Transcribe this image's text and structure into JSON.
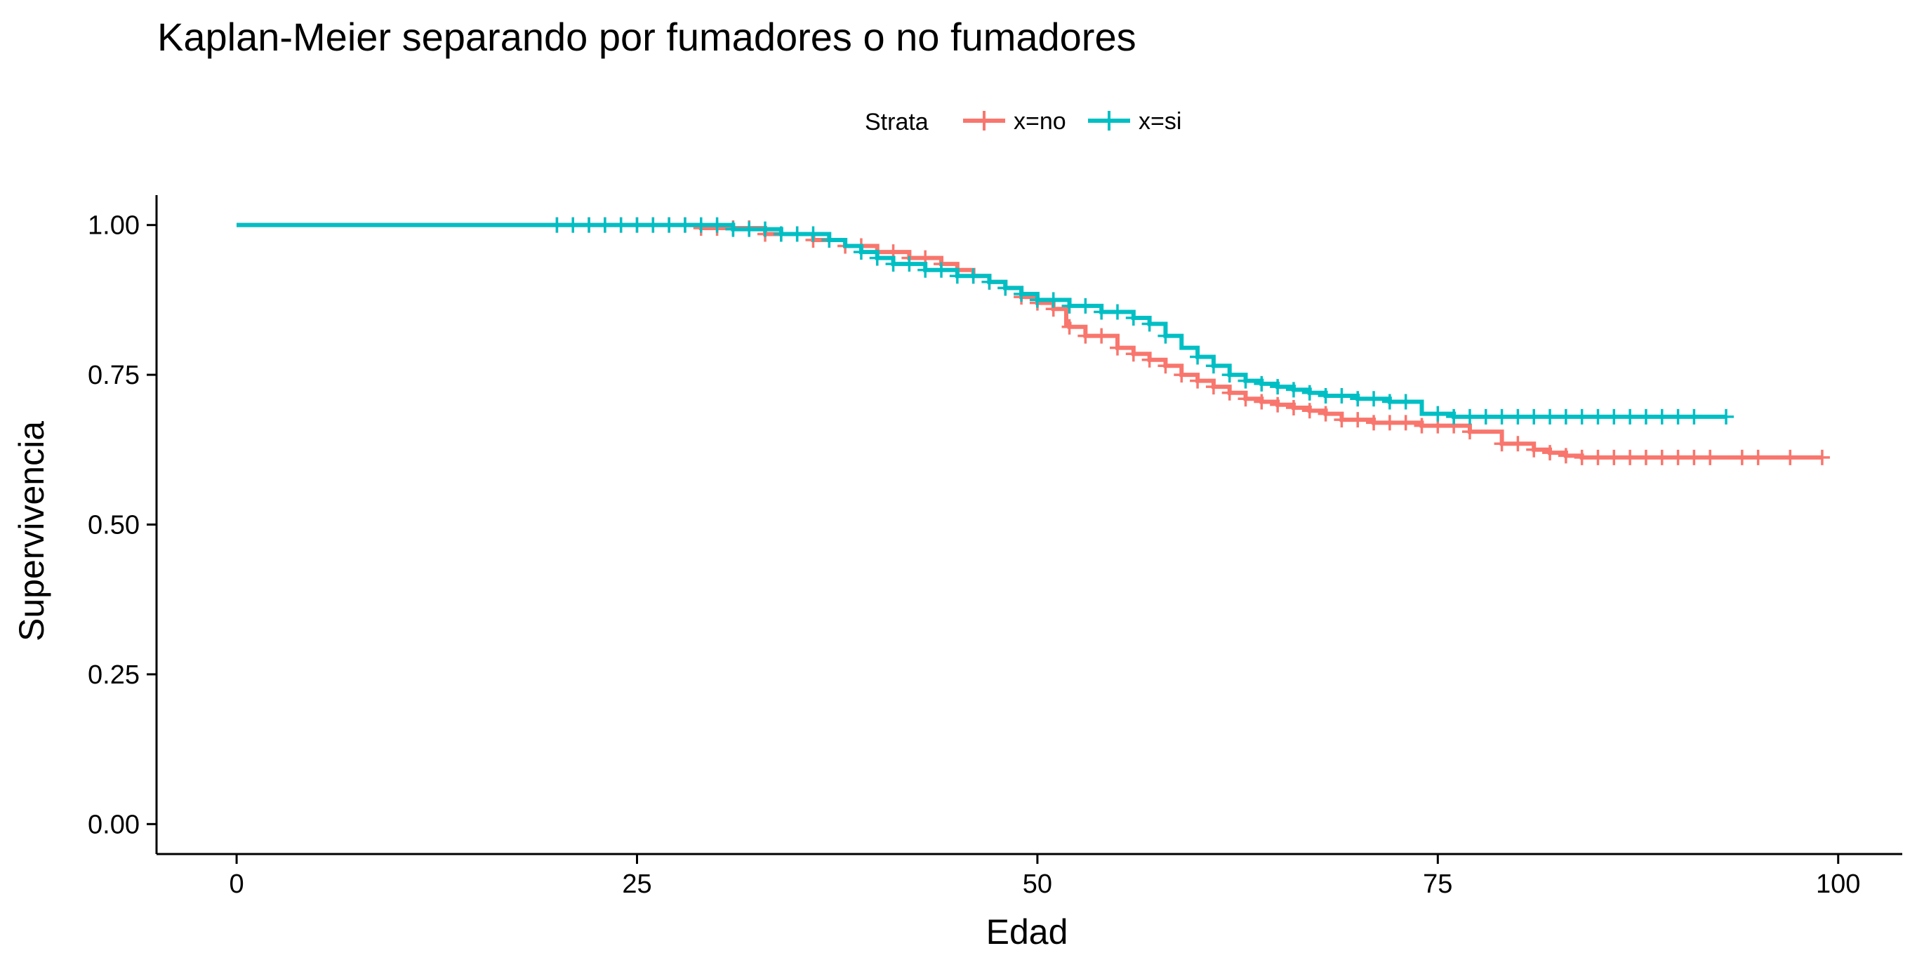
{
  "chart_data": {
    "type": "line",
    "subtype": "kaplan-meier-step",
    "title": "Kaplan-Meier separando por fumadores o no fumadores",
    "xlabel": "Edad",
    "ylabel": "Supervivencia",
    "xlim": [
      -5,
      104
    ],
    "ylim": [
      -0.05,
      1.05
    ],
    "xticks": [
      0,
      25,
      50,
      75,
      100
    ],
    "xtick_labels": [
      "0",
      "25",
      "50",
      "75",
      "100"
    ],
    "yticks": [
      0,
      0.25,
      0.5,
      0.75,
      1.0
    ],
    "ytick_labels": [
      "0.00",
      "0.25",
      "0.50",
      "0.75",
      "1.00"
    ],
    "grid": false,
    "legend": {
      "title": "Strata",
      "position": "top"
    },
    "series": [
      {
        "name": "x=no",
        "color": "#F8766D",
        "steps": [
          [
            0,
            1.0
          ],
          [
            29,
            0.995
          ],
          [
            33,
            0.985
          ],
          [
            36,
            0.975
          ],
          [
            38,
            0.965
          ],
          [
            40,
            0.955
          ],
          [
            42,
            0.945
          ],
          [
            44,
            0.935
          ],
          [
            45,
            0.925
          ],
          [
            46,
            0.915
          ],
          [
            47,
            0.905
          ],
          [
            48,
            0.895
          ],
          [
            49,
            0.88
          ],
          [
            50,
            0.87
          ],
          [
            51,
            0.86
          ],
          [
            51.8,
            0.835
          ],
          [
            52,
            0.83
          ],
          [
            53,
            0.815
          ],
          [
            55,
            0.795
          ],
          [
            56,
            0.785
          ],
          [
            57,
            0.775
          ],
          [
            58,
            0.765
          ],
          [
            59,
            0.75
          ],
          [
            60,
            0.74
          ],
          [
            61,
            0.73
          ],
          [
            62,
            0.72
          ],
          [
            63,
            0.71
          ],
          [
            64,
            0.705
          ],
          [
            65,
            0.7
          ],
          [
            66,
            0.695
          ],
          [
            67,
            0.69
          ],
          [
            68,
            0.685
          ],
          [
            69,
            0.675
          ],
          [
            71,
            0.67
          ],
          [
            74,
            0.665
          ],
          [
            77,
            0.655
          ],
          [
            79,
            0.635
          ],
          [
            81,
            0.625
          ],
          [
            82,
            0.62
          ],
          [
            83,
            0.615
          ],
          [
            84,
            0.612
          ],
          [
            99,
            0.612
          ]
        ],
        "censor": [
          20,
          21,
          22,
          23,
          24,
          25,
          26,
          27,
          28,
          29,
          30,
          31,
          32,
          33,
          34,
          35,
          36,
          37,
          38,
          39,
          40,
          41,
          42,
          43,
          44,
          45,
          46,
          47,
          48,
          49,
          50,
          51,
          52,
          53,
          54,
          55,
          56,
          57,
          58,
          59,
          60,
          61,
          62,
          63,
          64,
          65,
          66,
          67,
          68,
          69,
          70,
          71,
          72,
          73,
          74,
          75,
          76,
          77,
          79,
          80,
          81,
          82,
          83,
          84,
          85,
          86,
          87,
          88,
          89,
          90,
          91,
          92,
          94,
          95,
          97,
          99
        ]
      },
      {
        "name": "x=si",
        "color": "#00BFC4",
        "steps": [
          [
            0,
            1.0
          ],
          [
            31,
            0.993
          ],
          [
            34,
            0.985
          ],
          [
            37,
            0.975
          ],
          [
            38,
            0.965
          ],
          [
            39,
            0.955
          ],
          [
            40,
            0.945
          ],
          [
            41,
            0.935
          ],
          [
            43,
            0.925
          ],
          [
            45,
            0.915
          ],
          [
            47,
            0.905
          ],
          [
            48,
            0.895
          ],
          [
            49,
            0.885
          ],
          [
            50,
            0.875
          ],
          [
            52,
            0.865
          ],
          [
            54,
            0.855
          ],
          [
            56,
            0.845
          ],
          [
            57,
            0.835
          ],
          [
            58,
            0.815
          ],
          [
            59,
            0.795
          ],
          [
            60,
            0.78
          ],
          [
            61,
            0.765
          ],
          [
            62,
            0.75
          ],
          [
            63,
            0.74
          ],
          [
            64,
            0.735
          ],
          [
            65,
            0.73
          ],
          [
            66,
            0.725
          ],
          [
            67,
            0.72
          ],
          [
            68,
            0.715
          ],
          [
            70,
            0.71
          ],
          [
            72,
            0.705
          ],
          [
            74,
            0.685
          ],
          [
            76,
            0.68
          ],
          [
            93,
            0.68
          ]
        ],
        "censor": [
          20,
          21,
          22,
          23,
          24,
          25,
          26,
          27,
          28,
          29,
          30,
          31,
          32,
          33,
          34,
          35,
          36,
          37,
          39,
          40,
          41,
          42,
          43,
          44,
          45,
          46,
          47,
          48,
          49,
          50,
          51,
          52,
          53,
          54,
          55,
          56,
          57,
          58,
          60,
          61,
          62,
          63,
          64,
          65,
          66,
          67,
          68,
          69,
          70,
          71,
          72,
          73,
          75,
          76,
          77,
          78,
          79,
          80,
          81,
          82,
          83,
          84,
          85,
          86,
          87,
          88,
          89,
          90,
          91,
          93
        ]
      }
    ]
  }
}
